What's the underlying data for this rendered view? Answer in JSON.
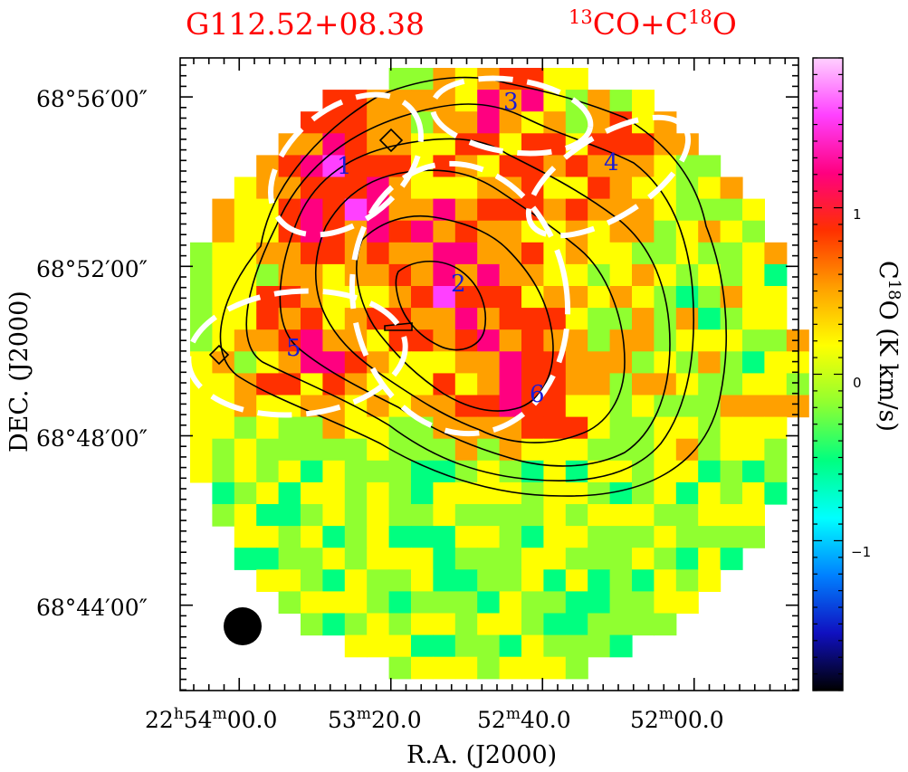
{
  "chart_data": {
    "type": "heatmap",
    "title_source": "G112.52+08.38",
    "title_lines": {
      "iso1_mass": "13",
      "iso1_base": "CO+C",
      "iso2_mass": "18",
      "iso2_base": "O"
    },
    "xlabel": "R.A. (J2000)",
    "ylabel": "DEC. (J2000)",
    "colorbar_label": {
      "base": "C",
      "mass": "18",
      "rest": "O (K km/s)"
    },
    "colorbar_ticks": [
      "1",
      "0",
      "−1"
    ],
    "colorbar_range": [
      -1.9,
      1.9
    ],
    "dec_ticks": [
      "68°56′00″",
      "68°52′00″",
      "68°48′00″",
      "68°44′00″"
    ],
    "ra_ticks": [
      {
        "h": "22",
        "hs": "h",
        "m": "54",
        "ms": "m",
        "s": "00.0",
        "ss": "s"
      },
      {
        "h": "",
        "hs": "",
        "m": "53",
        "ms": "m",
        "s": "20.0",
        "ss": "s"
      },
      {
        "h": "",
        "hs": "",
        "m": "52",
        "ms": "m",
        "s": "40.0",
        "ss": "s"
      },
      {
        "h": "",
        "hs": "",
        "m": "52",
        "ms": "m",
        "s": "00.0",
        "ss": "s"
      }
    ],
    "clumps": [
      "1",
      "2",
      "3",
      "4",
      "5",
      "6"
    ],
    "colormap": [
      "#000000",
      "#1010c0",
      "#0080ff",
      "#00ffff",
      "#00ff80",
      "#90ff30",
      "#ffff00",
      "#ffa000",
      "#ff3000",
      "#ff0080",
      "#ff40ff",
      "#ffd0ff"
    ],
    "grid_cols": 28,
    "grid_rows": 28
  }
}
